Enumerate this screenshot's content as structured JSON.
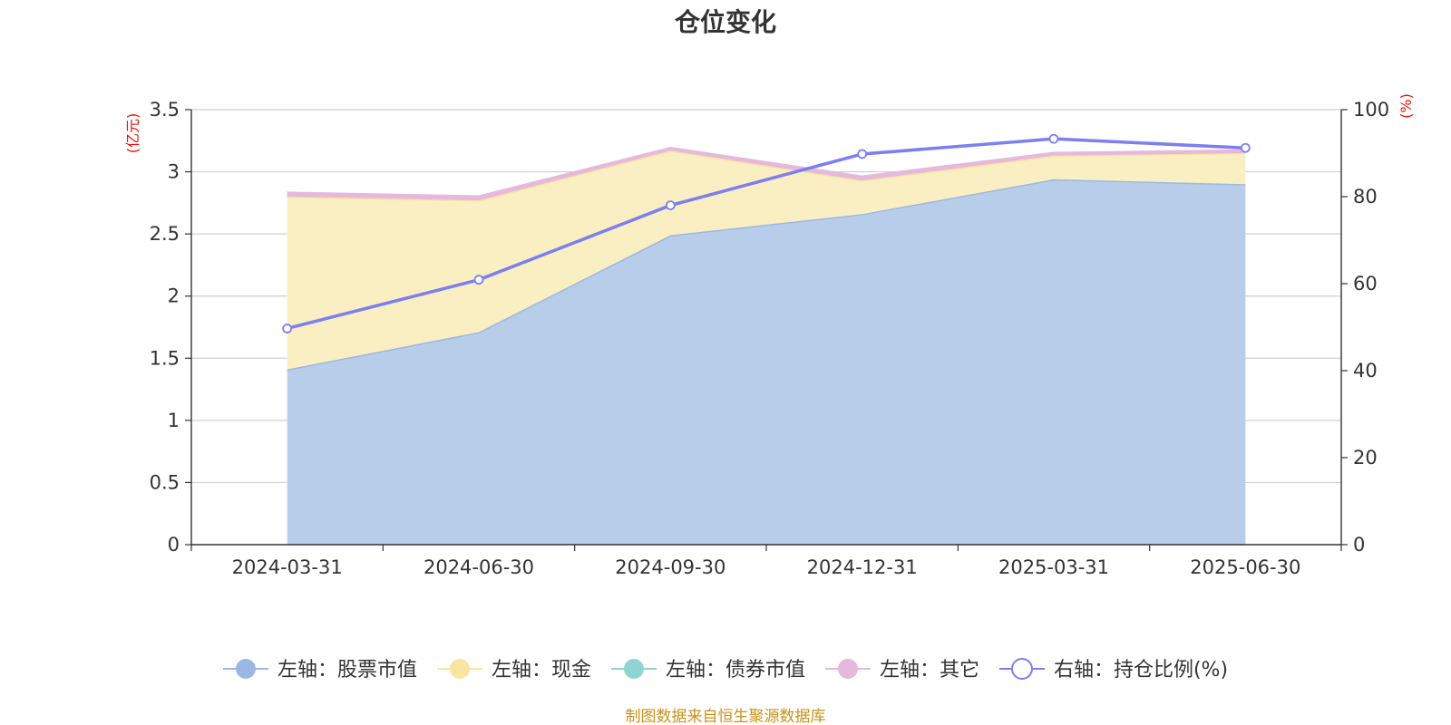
{
  "chart_data": {
    "type": "area",
    "title": "仓位变化",
    "categories": [
      "2024-03-31",
      "2024-06-30",
      "2024-09-30",
      "2024-12-31",
      "2025-03-31",
      "2025-06-30"
    ],
    "left_axis": {
      "unit_label": "(亿元)",
      "ylim": [
        0,
        3.5
      ],
      "ticks": [
        "0",
        "0.5",
        "1",
        "1.5",
        "2",
        "2.5",
        "3",
        "3.5"
      ],
      "tick_values": [
        0,
        0.5,
        1,
        1.5,
        2,
        2.5,
        3,
        3.5
      ]
    },
    "right_axis": {
      "unit_label": "(%)",
      "ylim": [
        0,
        100
      ],
      "ticks": [
        "0",
        "20",
        "40",
        "60",
        "80",
        "100"
      ],
      "tick_values": [
        0,
        20,
        40,
        60,
        80,
        100
      ]
    },
    "stacked": true,
    "series": [
      {
        "name": "左轴：股票市值",
        "axis": "left",
        "kind": "area",
        "color": "#9bb8e2",
        "fill": "#b8cdea",
        "values": [
          1.41,
          1.71,
          2.49,
          2.66,
          2.94,
          2.9
        ]
      },
      {
        "name": "左轴：现金",
        "axis": "left",
        "kind": "area",
        "color": "#f8e5a0",
        "fill": "#faefc3",
        "values": [
          1.39,
          1.06,
          0.68,
          0.27,
          0.19,
          0.25
        ]
      },
      {
        "name": "左轴：债券市值",
        "axis": "left",
        "kind": "area",
        "color": "#8fd3d3",
        "fill": "#8fd3d3",
        "values": [
          0,
          0,
          0,
          0,
          0,
          0
        ]
      },
      {
        "name": "左轴：其它",
        "axis": "left",
        "kind": "area",
        "color": "#e6b8dc",
        "fill": "#e6b8dc",
        "values": [
          0.03,
          0.03,
          0.02,
          0.03,
          0.02,
          0.02
        ]
      },
      {
        "name": "右轴：持仓比例(%)",
        "axis": "right",
        "kind": "line",
        "color": "#7b7ff0",
        "values": [
          49.7,
          60.9,
          78.0,
          89.8,
          93.3,
          91.2
        ]
      }
    ],
    "grid": true,
    "legend_position": "bottom"
  },
  "footer": {
    "source": "制图数据来自恒生聚源数据库"
  }
}
